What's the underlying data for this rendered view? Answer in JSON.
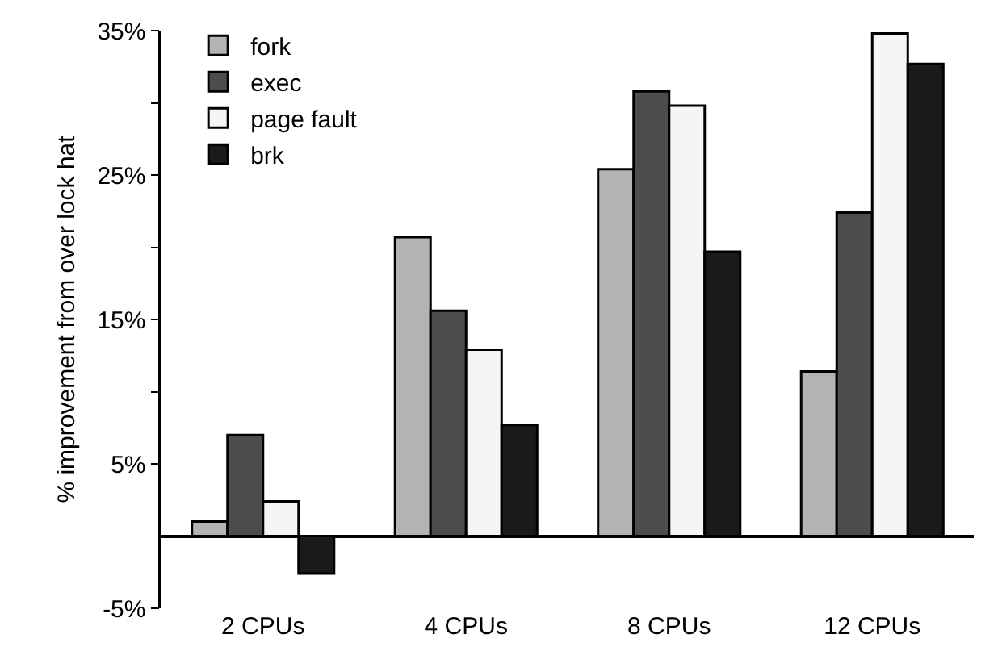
{
  "chart_data": {
    "type": "bar",
    "ylabel": "% improvement from over lock hat",
    "categories": [
      "2 CPUs",
      "4 CPUs",
      "8 CPUs",
      "12 CPUs"
    ],
    "series": [
      {
        "name": "fork",
        "color": "#b3b3b3",
        "values": [
          1.0,
          20.7,
          25.4,
          11.4
        ]
      },
      {
        "name": "exec",
        "color": "#4d4d4d",
        "values": [
          7.0,
          15.6,
          30.8,
          22.4
        ]
      },
      {
        "name": "page fault",
        "color": "#f5f5f5",
        "values": [
          2.4,
          12.9,
          29.8,
          34.8
        ]
      },
      {
        "name": "brk",
        "color": "#1a1a1a",
        "values": [
          -2.6,
          7.7,
          19.7,
          32.7
        ]
      }
    ],
    "ylim": [
      -5,
      35
    ],
    "yticks": [
      {
        "value": -5,
        "label": "-5%"
      },
      {
        "value": 5,
        "label": "5%"
      },
      {
        "value": 10,
        "label": null
      },
      {
        "value": 15,
        "label": "15%"
      },
      {
        "value": 20,
        "label": null
      },
      {
        "value": 25,
        "label": "25%"
      },
      {
        "value": 30,
        "label": null
      },
      {
        "value": 35,
        "label": "35%"
      }
    ],
    "grid": false,
    "legend": "top left"
  }
}
